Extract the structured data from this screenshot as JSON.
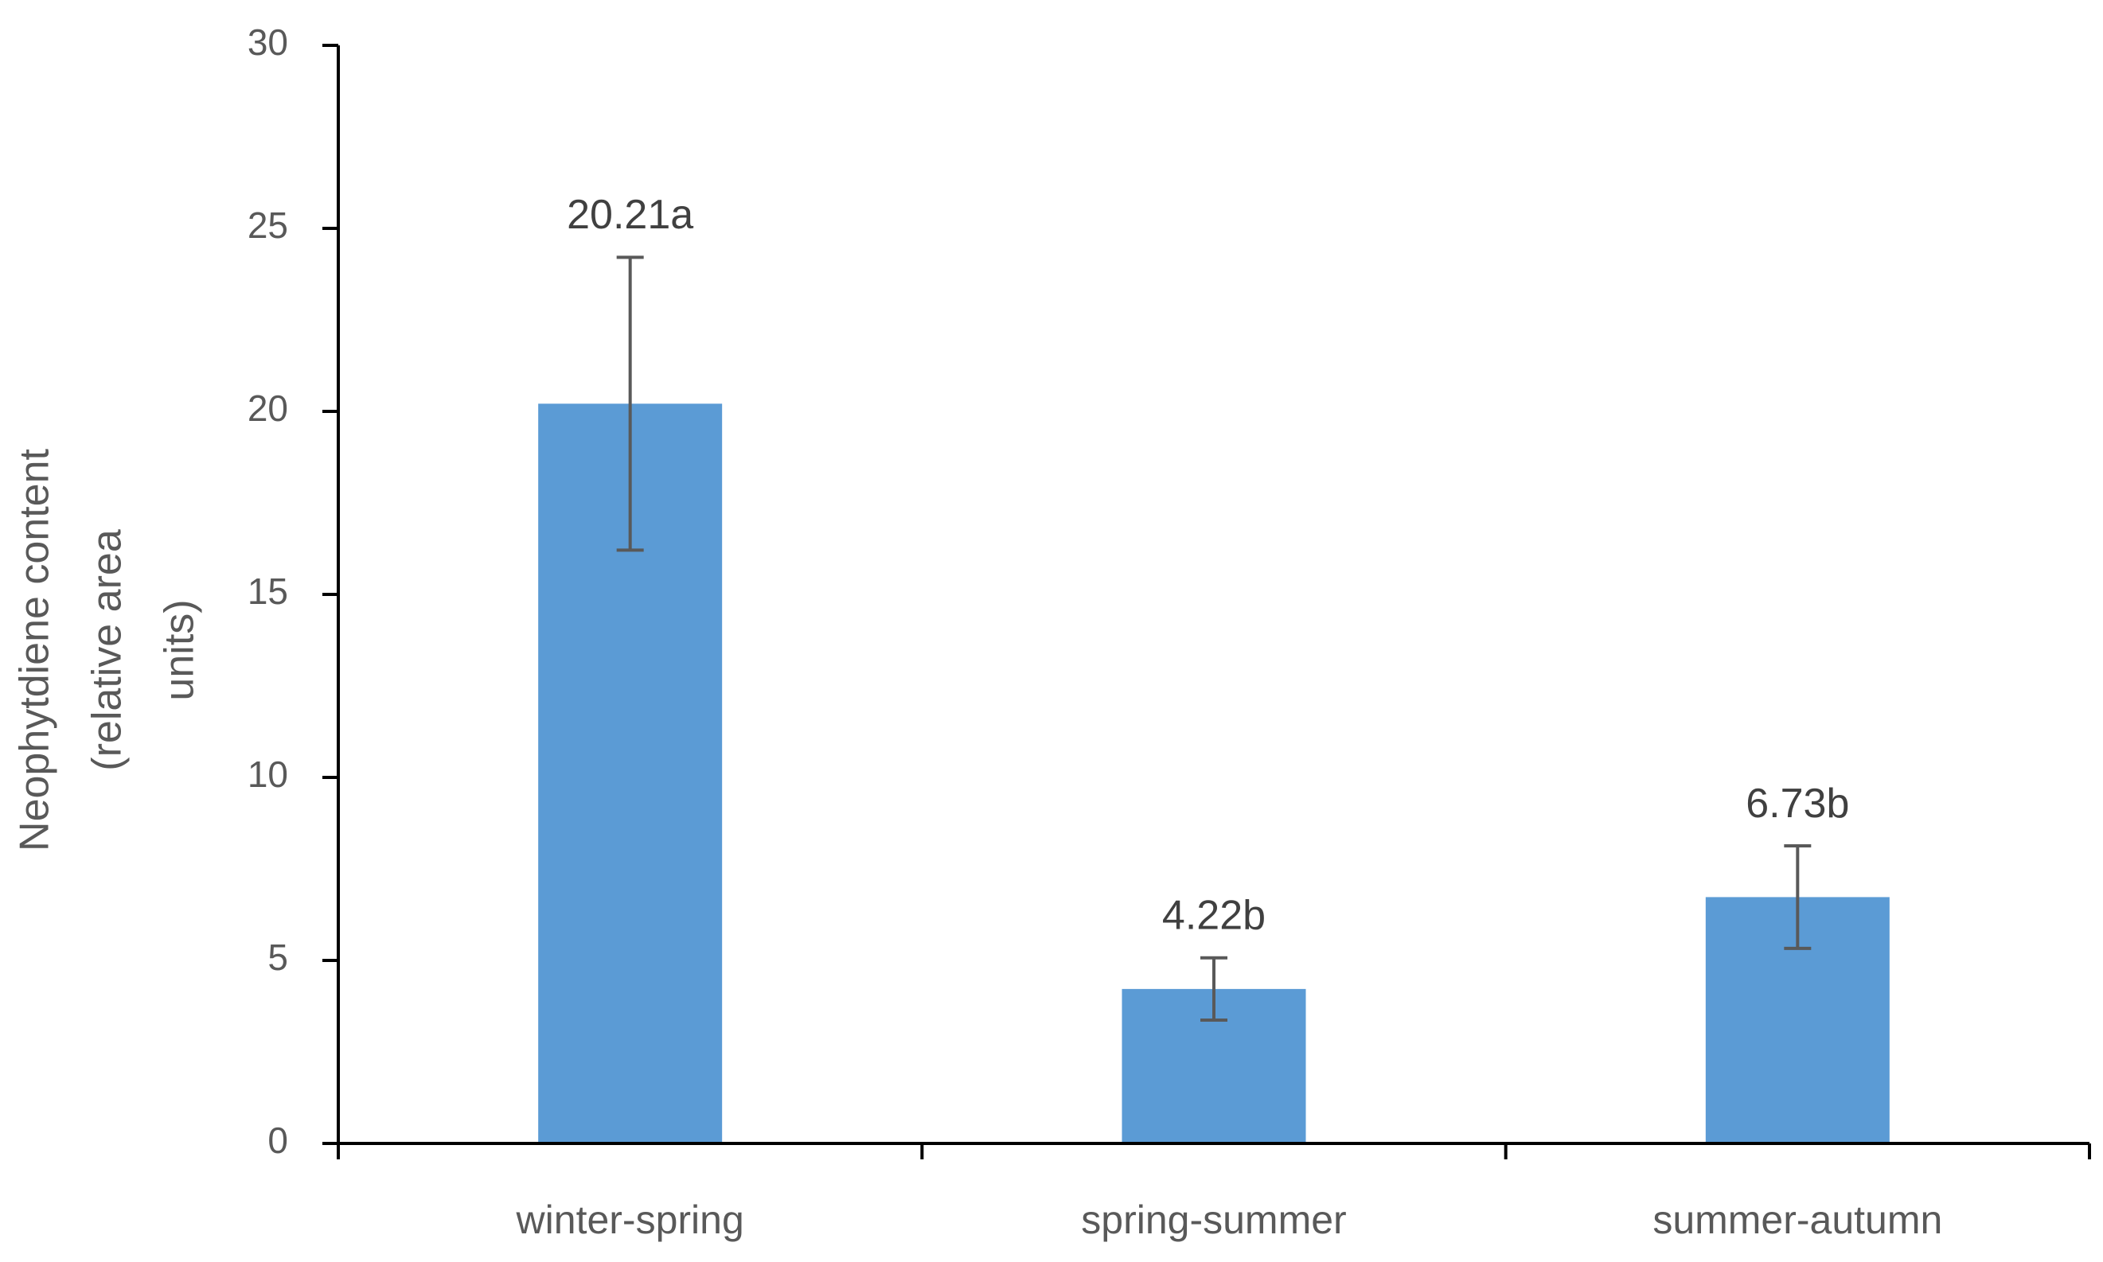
{
  "chart_data": {
    "type": "bar",
    "y_label": [
      "Neophytdiene content",
      "(relative area",
      "units)"
    ],
    "categories": [
      "winter-spring",
      "spring-summer",
      "summer-autumn"
    ],
    "values": [
      20.21,
      4.22,
      6.73
    ],
    "value_labels": [
      "20.21a",
      "4.22b",
      "6.73b"
    ],
    "errors": [
      4.0,
      0.85,
      1.4
    ],
    "color": "#5b9bd5",
    "ylim": [
      0,
      30
    ],
    "yticks": [
      0,
      5,
      10,
      15,
      20,
      25,
      30
    ]
  }
}
